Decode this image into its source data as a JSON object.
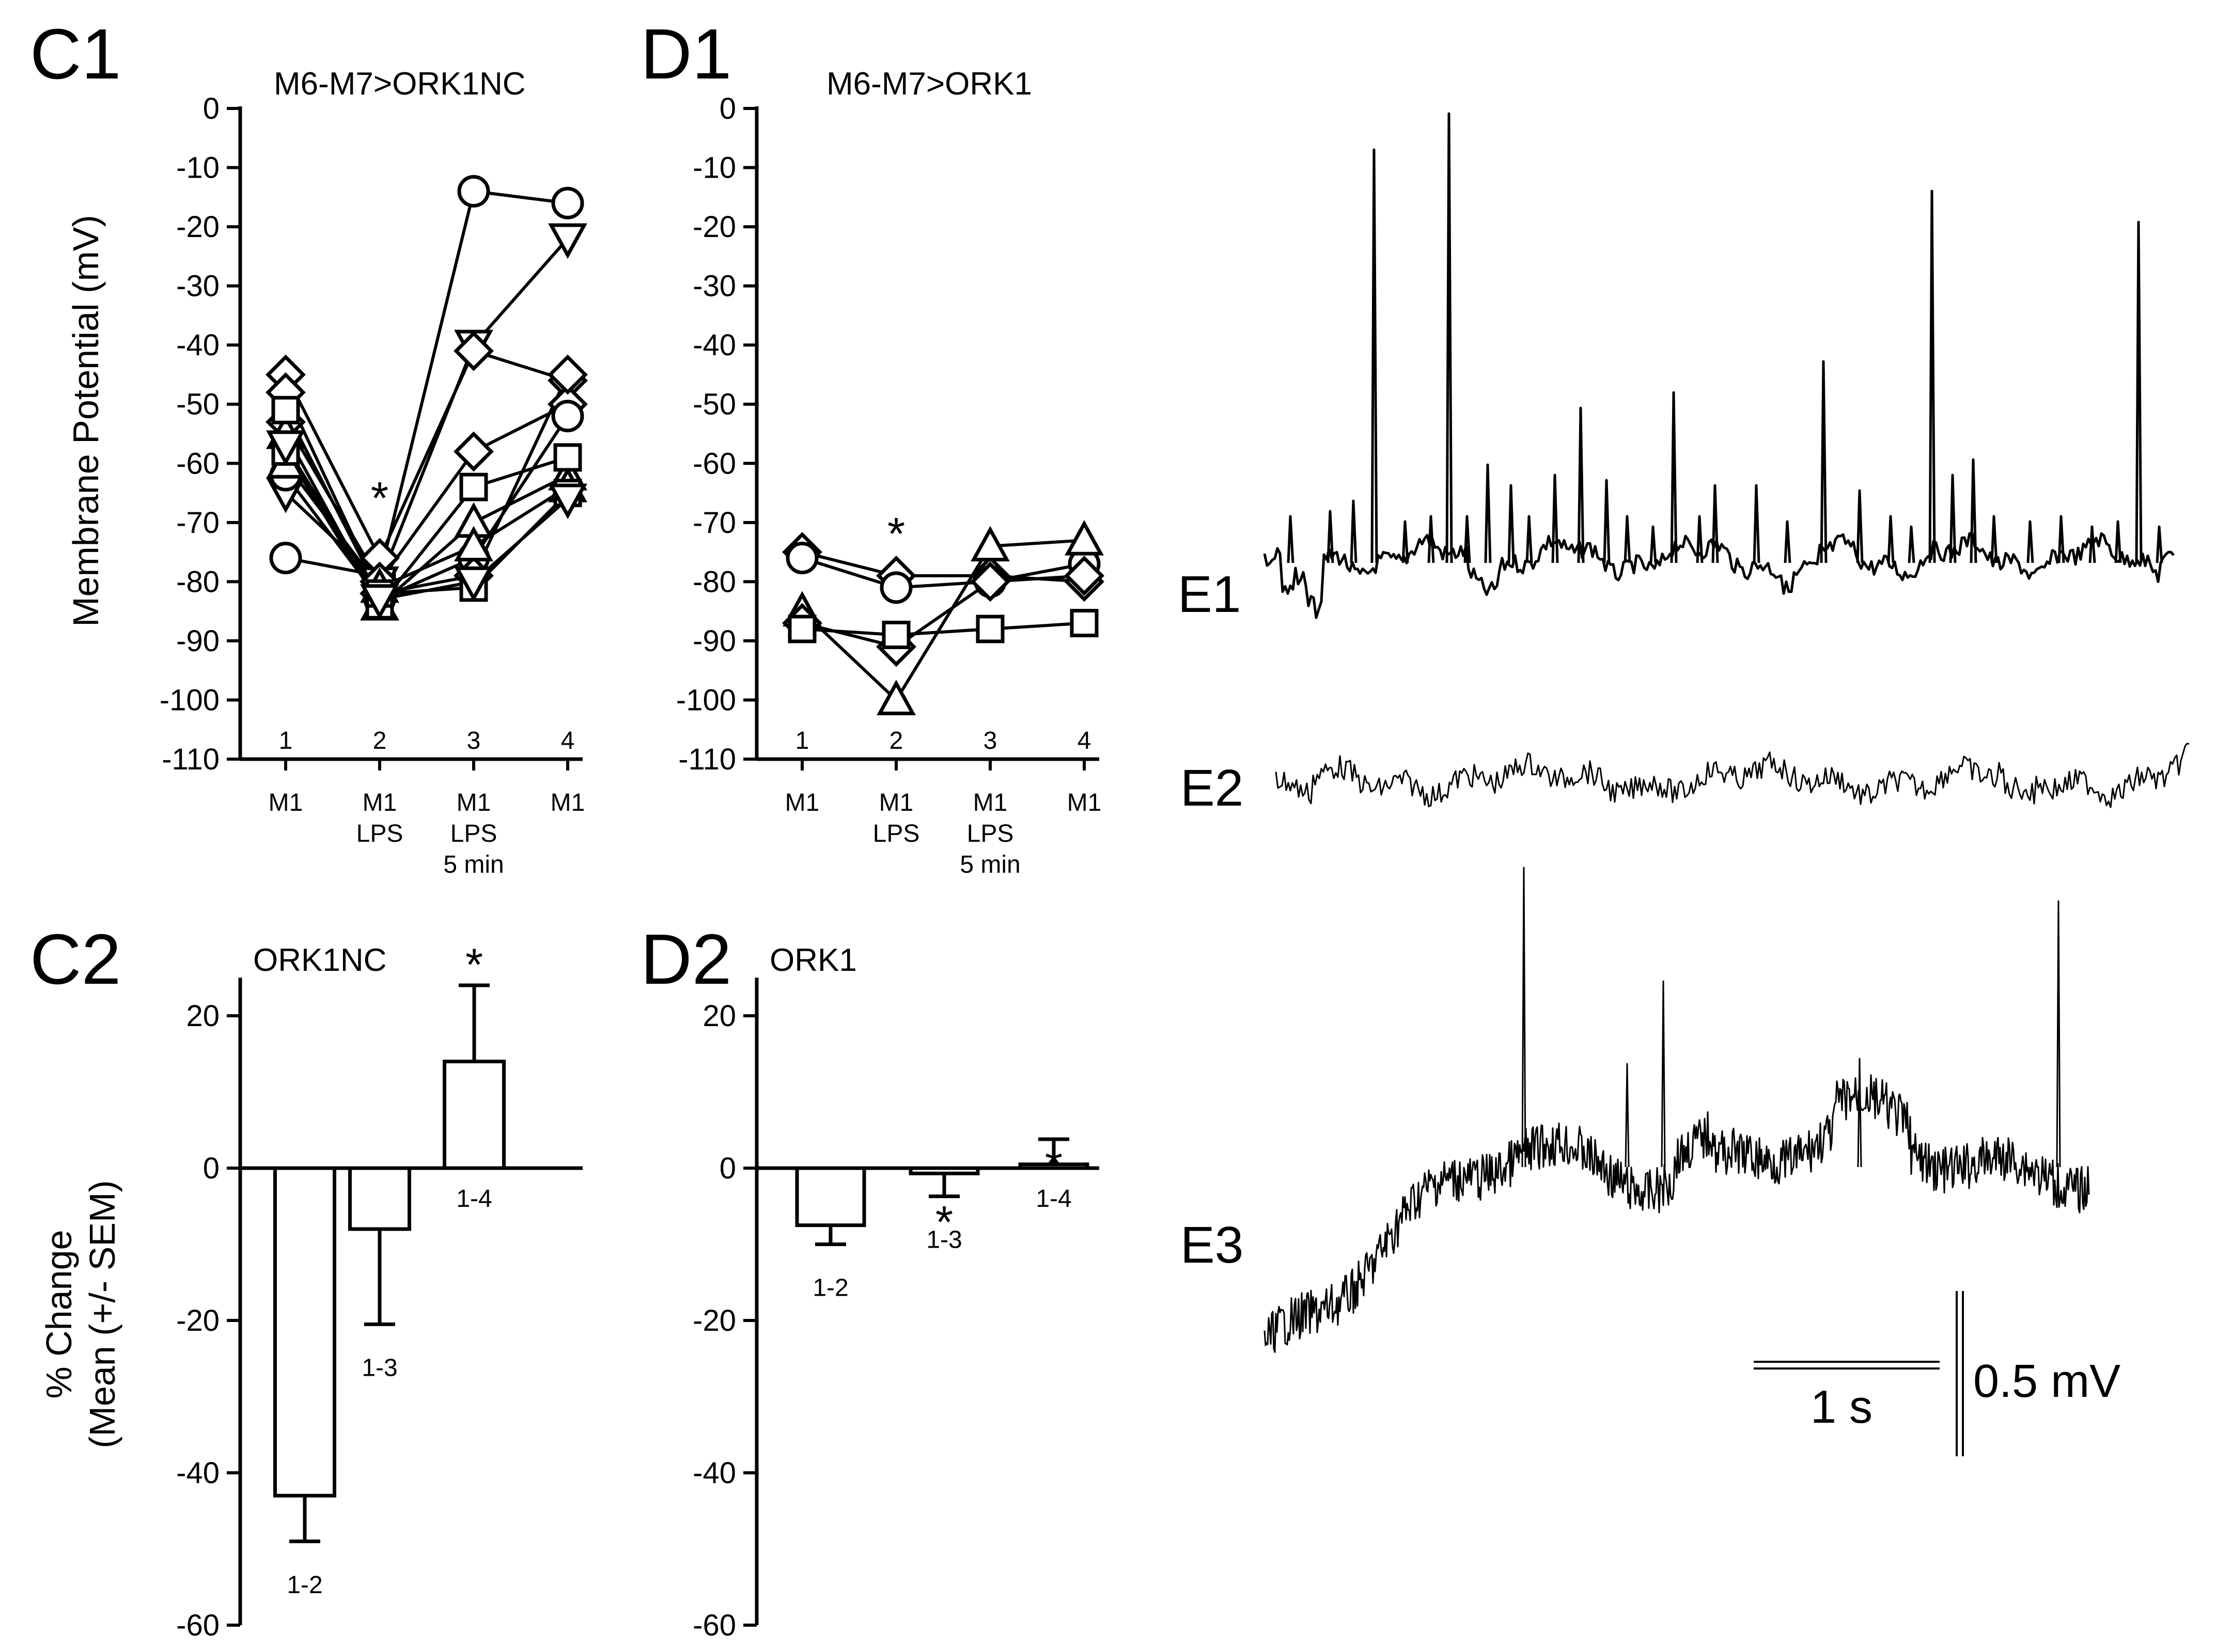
{
  "panels": {
    "c1": "C1",
    "d1": "D1",
    "c2": "C2",
    "d2": "D2",
    "e1": "E1",
    "e2": "E2",
    "e3": "E3"
  },
  "scale_bar": {
    "time": "1 s",
    "voltage": "0.5 mV"
  },
  "chart_data": [
    {
      "id": "C1",
      "type": "line",
      "title": "M6-M7>ORK1NC",
      "ylabel": "Membrane Potential (mV)",
      "ylim": [
        -110,
        0
      ],
      "yticks": [
        0,
        -10,
        -20,
        -30,
        -40,
        -50,
        -60,
        -70,
        -80,
        -90,
        -100,
        -110
      ],
      "x": [
        1,
        2,
        3,
        4
      ],
      "xnumbers": [
        "1",
        "2",
        "3",
        "4"
      ],
      "conditions": [
        [
          "M1"
        ],
        [
          "M1",
          "LPS"
        ],
        [
          "M1",
          "LPS",
          "5 min"
        ],
        [
          "M1"
        ]
      ],
      "significance": [
        {
          "x": 2,
          "y": -65,
          "label": "*"
        }
      ],
      "series": [
        {
          "marker": "circle",
          "values": [
            -76,
            -79,
            -14,
            -16
          ]
        },
        {
          "marker": "triangle-down",
          "values": [
            -65,
            -80,
            -40,
            -22
          ]
        },
        {
          "marker": "diamond",
          "values": [
            -45,
            -76,
            -41,
            -46
          ]
        },
        {
          "marker": "diamond",
          "values": [
            -53,
            -80,
            -58,
            -50
          ]
        },
        {
          "marker": "circle",
          "values": [
            -62,
            -83,
            -76,
            -52
          ]
        },
        {
          "marker": "diamond",
          "values": [
            -48,
            -82,
            -79,
            -45
          ]
        },
        {
          "marker": "triangle-up",
          "values": [
            -55,
            -84,
            -70,
            -62
          ]
        },
        {
          "marker": "triangle-up",
          "values": [
            -60,
            -81,
            -74,
            -64
          ]
        },
        {
          "marker": "square",
          "values": [
            -58,
            -84,
            -64,
            -59
          ]
        },
        {
          "marker": "square",
          "values": [
            -51,
            -82,
            -81,
            -65
          ]
        },
        {
          "marker": "triangle-down",
          "values": [
            -57,
            -83,
            -80,
            -66
          ]
        }
      ]
    },
    {
      "id": "D1",
      "type": "line",
      "title": "M6-M7>ORK1",
      "ylim": [
        -110,
        0
      ],
      "yticks": [
        0,
        -10,
        -20,
        -30,
        -40,
        -50,
        -60,
        -70,
        -80,
        -90,
        -100,
        -110
      ],
      "x": [
        1,
        2,
        3,
        4
      ],
      "xnumbers": [
        "1",
        "2",
        "3",
        "4"
      ],
      "conditions": [
        [
          "M1"
        ],
        [
          "M1",
          "LPS"
        ],
        [
          "M1",
          "LPS",
          "5 min"
        ],
        [
          "M1"
        ]
      ],
      "significance": [
        {
          "x": 2,
          "y": -71,
          "label": "*"
        }
      ],
      "series": [
        {
          "marker": "diamond",
          "values": [
            -75,
            -79,
            -79,
            -80
          ]
        },
        {
          "marker": "circle",
          "values": [
            -76,
            -81,
            -80,
            -77
          ]
        },
        {
          "marker": "triangle-up",
          "values": [
            -85,
            -100,
            -74,
            -73
          ]
        },
        {
          "marker": "diamond",
          "values": [
            -87,
            -91,
            -80,
            -79
          ]
        },
        {
          "marker": "square",
          "values": [
            -88,
            -89,
            -88,
            -87
          ]
        }
      ]
    },
    {
      "id": "C2",
      "type": "bar",
      "title": "ORK1NC",
      "ylabel": [
        "% Change",
        "(Mean (+/- SEM)"
      ],
      "ylim": [
        -60,
        25
      ],
      "yticks": [
        20,
        0,
        -20,
        -40,
        -60
      ],
      "categories": [
        "1-2",
        "1-3",
        "1-4"
      ],
      "values": [
        -43,
        -8,
        14
      ],
      "errors": [
        6,
        12.5,
        10
      ],
      "significant": [
        false,
        false,
        true
      ]
    },
    {
      "id": "D2",
      "type": "bar",
      "title": "ORK1",
      "ylim": [
        -60,
        25
      ],
      "yticks": [
        20,
        0,
        -20,
        -40,
        -60
      ],
      "categories": [
        "1-2",
        "1-3",
        "1-4"
      ],
      "values": [
        -7.5,
        -0.7,
        0.5
      ],
      "errors": [
        2.5,
        3,
        3.3
      ],
      "significant": [
        false,
        true,
        true
      ]
    }
  ]
}
